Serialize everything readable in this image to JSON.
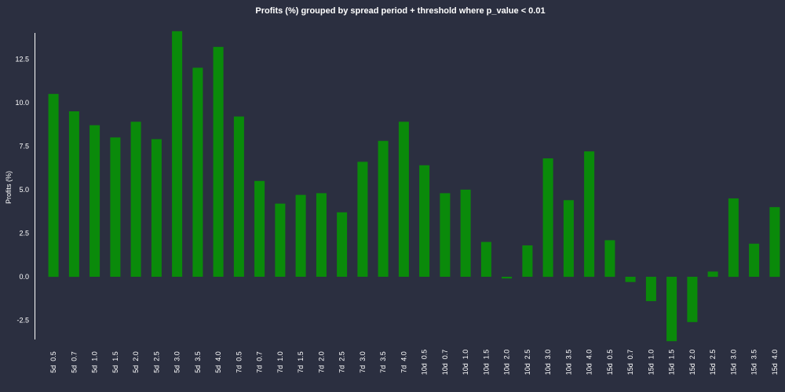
{
  "colors": {
    "background": "#2b2f40",
    "bar": "#0a8a0a",
    "axis": "#ffffff",
    "text": "#ffffff"
  },
  "chart_data": {
    "type": "bar",
    "title": "Profits (%) grouped by spread period + threshold where p_value < 0.01",
    "xlabel": "",
    "ylabel": "Profits (%)",
    "ylim": [
      -3.6,
      14.0
    ],
    "yticks": [
      -2.5,
      0.0,
      2.5,
      5.0,
      7.5,
      10.0,
      12.5
    ],
    "ytick_labels": [
      "-2.5",
      "0.0",
      "2.5",
      "5.0",
      "7.5",
      "10.0",
      "12.5"
    ],
    "categories": [
      "5d  0.5",
      "5d  0.7",
      "5d  1.0",
      "5d  1.5",
      "5d  2.0",
      "5d  2.5",
      "5d  3.0",
      "5d  3.5",
      "5d  4.0",
      "7d  0.5",
      "7d  0.7",
      "7d  1.0",
      "7d  1.5",
      "7d  2.0",
      "7d  2.5",
      "7d  3.0",
      "7d  3.5",
      "7d  4.0",
      "10d  0.5",
      "10d  0.7",
      "10d  1.0",
      "10d  1.5",
      "10d  2.0",
      "10d  2.5",
      "10d  3.0",
      "10d  3.5",
      "10d  4.0",
      "15d  0.5",
      "15d  0.7",
      "15d  1.0",
      "15d  1.5",
      "15d  2.0",
      "15d  2.5",
      "15d  3.0",
      "15d  3.5",
      "15d  4.0"
    ],
    "values": [
      10.5,
      9.5,
      8.7,
      8.0,
      8.9,
      7.9,
      14.1,
      12.0,
      13.2,
      9.2,
      5.5,
      4.2,
      4.7,
      4.8,
      3.7,
      6.6,
      7.8,
      8.9,
      6.4,
      4.8,
      5.0,
      2.0,
      -0.1,
      1.8,
      6.8,
      4.4,
      7.2,
      2.1,
      -0.3,
      -1.4,
      -3.7,
      -2.6,
      0.3,
      4.5,
      1.9,
      4.0
    ],
    "grid": false,
    "legend": "none"
  }
}
